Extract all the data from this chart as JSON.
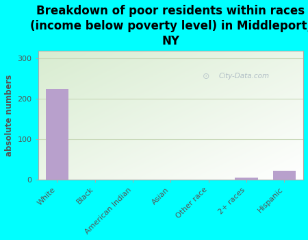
{
  "title": "Breakdown of poor residents within races\n(income below poverty level) in Middleport,\nNY",
  "categories": [
    "White",
    "Black",
    "American Indian",
    "Asian",
    "Other race",
    "2+ races",
    "Hispanic"
  ],
  "values": [
    225,
    0,
    0,
    0,
    0,
    5,
    22
  ],
  "bar_color": "#b8a0cc",
  "background_color": "#00ffff",
  "plot_bg_color_top_left": "#d8ecd0",
  "plot_bg_color_bottom_right": "#ffffff",
  "ylabel": "absolute numbers",
  "ylim": [
    0,
    320
  ],
  "yticks": [
    0,
    100,
    200,
    300
  ],
  "title_fontsize": 12,
  "tick_label_color": "#555555",
  "watermark": "City-Data.com",
  "grid_color": "#c8d8b8",
  "spine_color": "#aaaaaa"
}
